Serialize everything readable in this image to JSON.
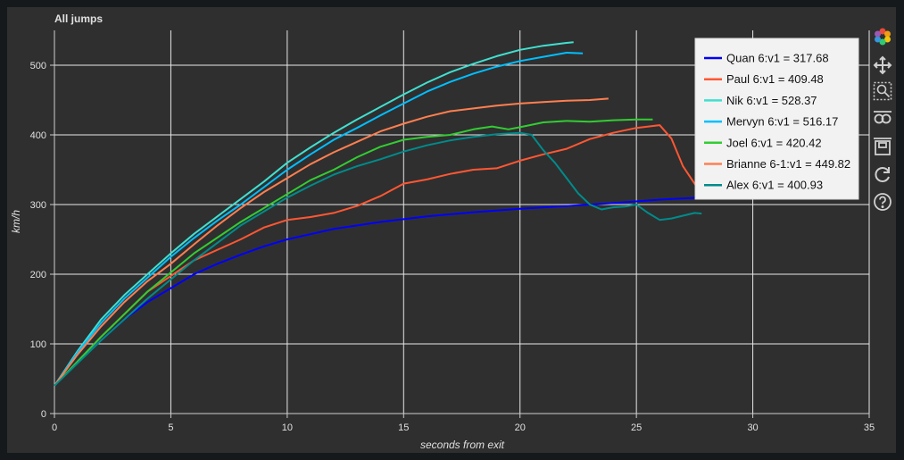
{
  "chart_data": {
    "type": "line",
    "title": "All jumps",
    "xlabel": "seconds from exit",
    "ylabel": "km/h",
    "xlim": [
      0,
      35
    ],
    "ylim": [
      0,
      550
    ],
    "x_ticks": [
      0,
      5,
      10,
      15,
      20,
      25,
      30,
      35
    ],
    "y_ticks": [
      0,
      100,
      200,
      300,
      400,
      500
    ],
    "grid": true,
    "legend_position": "top-right",
    "series": [
      {
        "name": "Quan 6:v1 = 317.68",
        "color": "#0000ff",
        "x": [
          0,
          1,
          2,
          3,
          4,
          5,
          6,
          7,
          8,
          9,
          10,
          12,
          14,
          16,
          18,
          20,
          22,
          24,
          26,
          27.7
        ],
        "y": [
          40,
          75,
          105,
          135,
          160,
          180,
          200,
          215,
          228,
          240,
          250,
          265,
          275,
          283,
          289,
          294,
          298,
          302,
          307,
          310
        ]
      },
      {
        "name": "Paul 6:v1 = 409.48",
        "color": "#ff5733",
        "x": [
          0,
          2,
          4,
          6,
          8,
          9,
          10,
          11,
          12,
          13,
          14,
          15,
          16,
          17,
          18,
          19,
          20,
          21,
          22,
          23,
          24,
          25,
          26,
          26.5,
          27,
          27.7
        ],
        "y": [
          40,
          110,
          175,
          220,
          250,
          267,
          278,
          282,
          288,
          298,
          312,
          330,
          336,
          344,
          350,
          352,
          363,
          372,
          380,
          394,
          403,
          410,
          414,
          395,
          355,
          320
        ]
      },
      {
        "name": "Nik 6:v1 = 528.37",
        "color": "#40e0d0",
        "x": [
          0,
          1,
          2,
          3,
          4,
          5,
          6,
          7,
          8,
          9,
          10,
          11,
          12,
          13,
          14,
          15,
          16,
          17,
          18,
          19,
          20,
          21,
          22,
          22.3
        ],
        "y": [
          40,
          90,
          135,
          170,
          200,
          230,
          258,
          283,
          308,
          333,
          360,
          382,
          403,
          422,
          440,
          458,
          475,
          490,
          502,
          513,
          522,
          528,
          532,
          533
        ]
      },
      {
        "name": "Mervyn 6:v1 = 516.17",
        "color": "#00bfff",
        "x": [
          0,
          1,
          2,
          3,
          4,
          5,
          6,
          7,
          8,
          9,
          10,
          11,
          12,
          13,
          14,
          15,
          16,
          17,
          18,
          19,
          20,
          21,
          22,
          22.7
        ],
        "y": [
          40,
          88,
          130,
          165,
          195,
          225,
          252,
          277,
          300,
          325,
          350,
          372,
          393,
          410,
          428,
          445,
          462,
          476,
          488,
          498,
          506,
          512,
          518,
          517
        ]
      },
      {
        "name": "Joel 6:v1 = 420.42",
        "color": "#32cd32",
        "x": [
          0,
          2,
          4,
          6,
          8,
          10,
          11,
          12,
          13,
          14,
          15,
          16,
          17,
          18,
          18.8,
          19.5,
          20,
          21,
          22,
          23,
          24,
          25,
          25.7
        ],
        "y": [
          40,
          110,
          175,
          230,
          275,
          315,
          335,
          350,
          368,
          383,
          393,
          397,
          400,
          408,
          412,
          408,
          411,
          418,
          420,
          419,
          421,
          422,
          422
        ]
      },
      {
        "name": "Brianne 6-1:v1 = 449.82",
        "color": "#ff7f50",
        "x": [
          0,
          1,
          2,
          3,
          4,
          5,
          6,
          7,
          8,
          9,
          10,
          11,
          12,
          13,
          14,
          15,
          16,
          17,
          18,
          19,
          20,
          21,
          22,
          23,
          23.8
        ],
        "y": [
          40,
          85,
          125,
          160,
          190,
          215,
          243,
          270,
          295,
          318,
          338,
          358,
          375,
          390,
          405,
          416,
          426,
          434,
          438,
          442,
          445,
          447,
          449,
          450,
          452
        ]
      },
      {
        "name": "Alex 6:v1 = 400.93",
        "color": "#008b8b",
        "x": [
          0,
          2,
          4,
          6,
          8,
          10,
          11,
          12,
          13,
          14,
          15,
          16,
          17,
          18,
          19,
          20,
          20.5,
          21,
          21.5,
          22,
          22.5,
          23,
          23.5,
          24,
          24.5,
          25,
          25.5,
          26,
          26.5,
          27,
          27.5,
          27.8
        ],
        "y": [
          40,
          105,
          165,
          220,
          270,
          310,
          327,
          343,
          355,
          365,
          376,
          385,
          392,
          397,
          401,
          403,
          400,
          378,
          360,
          338,
          316,
          300,
          293,
          296,
          297,
          300,
          288,
          278,
          280,
          284,
          288,
          287
        ]
      }
    ]
  },
  "toolbar": {
    "tools": [
      {
        "name": "bokeh-logo",
        "icon": "bokeh-logo-icon"
      },
      {
        "name": "pan",
        "icon": "pan-move-icon"
      },
      {
        "name": "box-zoom",
        "icon": "box-zoom-icon"
      },
      {
        "name": "wheel-zoom",
        "icon": "wheel-zoom-icon"
      },
      {
        "name": "save",
        "icon": "save-icon"
      },
      {
        "name": "reset",
        "icon": "reset-icon"
      },
      {
        "name": "help",
        "icon": "help-icon"
      }
    ]
  }
}
